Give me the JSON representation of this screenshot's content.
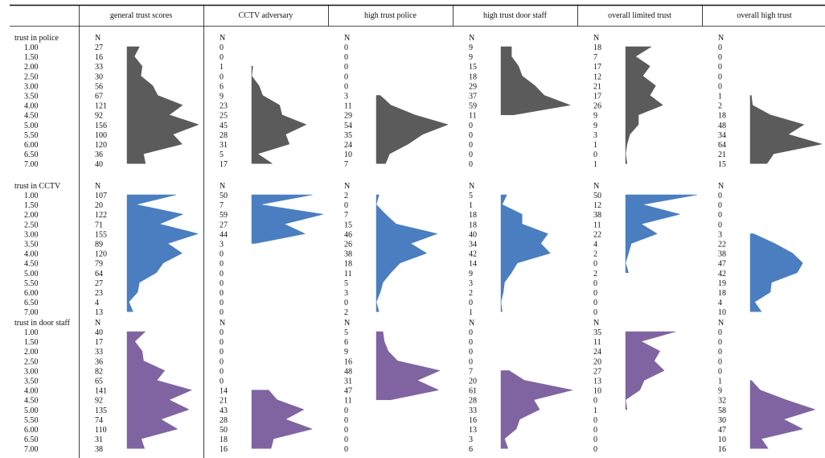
{
  "chart_data": {
    "type": "table",
    "columns": [
      "general trust scores",
      "CCTV adversary",
      "high trust police",
      "high trust door staff",
      "overall limited trust",
      "overall high trust"
    ],
    "count_header": "N",
    "levels": [
      "1.00",
      "1.50",
      "2.00",
      "2.50",
      "3.00",
      "3.50",
      "4.00",
      "4.50",
      "5.00",
      "5.50",
      "6.00",
      "6.50",
      "7.00"
    ],
    "groups": [
      {
        "label": "trust in police",
        "color": "#5b5b5b",
        "counts": [
          [
            27,
            16,
            33,
            30,
            56,
            67,
            121,
            92,
            156,
            100,
            120,
            36,
            40
          ],
          [
            0,
            0,
            1,
            0,
            6,
            9,
            23,
            25,
            45,
            28,
            31,
            5,
            17
          ],
          [
            0,
            0,
            0,
            0,
            0,
            3,
            11,
            29,
            54,
            35,
            24,
            10,
            7
          ],
          [
            9,
            9,
            15,
            18,
            29,
            37,
            59,
            11,
            0,
            0,
            0,
            0,
            0
          ],
          [
            18,
            7,
            17,
            12,
            21,
            17,
            26,
            9,
            9,
            3,
            1,
            0,
            1
          ],
          [
            0,
            0,
            0,
            0,
            0,
            1,
            2,
            18,
            48,
            34,
            64,
            21,
            15
          ]
        ]
      },
      {
        "label": "trust in CCTV",
        "color": "#4a7ec0",
        "counts": [
          [
            107,
            20,
            122,
            71,
            155,
            89,
            120,
            79,
            64,
            27,
            23,
            4,
            13
          ],
          [
            50,
            7,
            59,
            27,
            44,
            3,
            0,
            0,
            0,
            0,
            0,
            0,
            0
          ],
          [
            2,
            0,
            7,
            15,
            46,
            26,
            38,
            18,
            11,
            5,
            3,
            0,
            2
          ],
          [
            5,
            1,
            18,
            18,
            40,
            34,
            42,
            14,
            9,
            3,
            2,
            0,
            1
          ],
          [
            50,
            12,
            38,
            11,
            22,
            4,
            2,
            0,
            2,
            0,
            0,
            0,
            0
          ],
          [
            0,
            0,
            0,
            0,
            3,
            22,
            38,
            47,
            42,
            19,
            18,
            4,
            10
          ]
        ]
      },
      {
        "label": "trust in door staff",
        "color": "#8064a2",
        "counts": [
          [
            40,
            17,
            33,
            36,
            82,
            65,
            141,
            92,
            135,
            74,
            110,
            31,
            38
          ],
          [
            0,
            0,
            0,
            0,
            0,
            0,
            14,
            21,
            43,
            28,
            50,
            18,
            16
          ],
          [
            5,
            6,
            9,
            16,
            48,
            31,
            47,
            11,
            0,
            0,
            0,
            0,
            0
          ],
          [
            0,
            0,
            0,
            0,
            7,
            20,
            61,
            28,
            33,
            16,
            13,
            3,
            6
          ],
          [
            35,
            11,
            24,
            20,
            27,
            13,
            10,
            0,
            1,
            0,
            0,
            0,
            0
          ],
          [
            0,
            0,
            0,
            0,
            0,
            1,
            9,
            32,
            58,
            30,
            47,
            10,
            16
          ]
        ]
      }
    ]
  }
}
